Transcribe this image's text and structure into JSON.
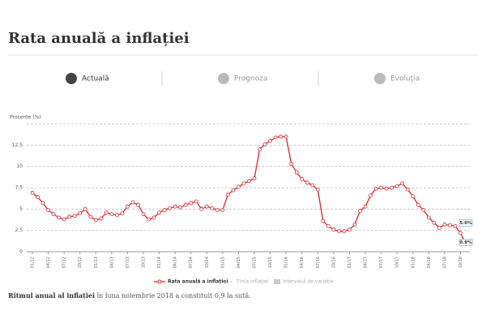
{
  "header": {
    "title": "Rata anuală a inflației"
  },
  "tabs": [
    "Actuală",
    "Prognoza",
    "Evoluția"
  ],
  "footer": {
    "bold": "Ritmul anual al inflației",
    "text": "în luna noiembrie 2018 a constituit 0,9 la sută."
  },
  "chart_data": {
    "type": "line",
    "y_label": "Procente (%)",
    "ylim": [
      0,
      15
    ],
    "yticks": [
      0,
      2.5,
      5,
      7.5,
      10,
      12.5
    ],
    "grid": true,
    "categories": [
      "01/12",
      null,
      null,
      "04/12",
      null,
      null,
      "07/12",
      null,
      null,
      "10/12",
      null,
      null,
      "01/13",
      null,
      null,
      "04/13",
      null,
      null,
      "07/13",
      null,
      null,
      "10/13",
      null,
      null,
      "01/14",
      null,
      null,
      "04/14",
      null,
      null,
      "07/14",
      null,
      null,
      "10/14",
      null,
      null,
      "01/15",
      null,
      null,
      "04/15",
      null,
      null,
      "07/15",
      null,
      null,
      "10/15",
      null,
      null,
      "01/16",
      null,
      null,
      "04/16",
      null,
      null,
      "07/16",
      null,
      null,
      "10/16",
      null,
      null,
      "01/17",
      null,
      null,
      "04/17",
      null,
      null,
      "07/17",
      null,
      null,
      "10/17",
      null,
      null,
      "01/18",
      null,
      null,
      "04/18",
      null,
      null,
      "07/18",
      null,
      null,
      "10/18",
      null
    ],
    "series": [
      {
        "name": "Rata anuală a inflației",
        "color": "#d9262d",
        "values": [
          6.9,
          6.4,
          5.7,
          4.9,
          4.4,
          4.0,
          3.8,
          4.1,
          4.2,
          4.5,
          5.0,
          4.1,
          3.7,
          3.9,
          4.6,
          4.4,
          4.3,
          4.5,
          5.3,
          5.8,
          5.5,
          4.4,
          3.8,
          4.0,
          4.6,
          4.9,
          5.1,
          5.3,
          5.2,
          5.5,
          5.7,
          5.9,
          5.0,
          5.3,
          5.1,
          4.9,
          4.9,
          6.7,
          7.2,
          7.6,
          8.0,
          8.3,
          8.6,
          12.0,
          12.6,
          13.0,
          13.4,
          13.5,
          13.5,
          10.3,
          9.3,
          8.5,
          8.1,
          7.8,
          7.3,
          3.6,
          3.0,
          2.6,
          2.4,
          2.4,
          2.6,
          3.2,
          4.8,
          5.3,
          6.6,
          7.4,
          7.5,
          7.4,
          7.5,
          7.7,
          8.0,
          7.3,
          6.5,
          5.5,
          4.9,
          4.0,
          3.4,
          2.8,
          3.2,
          3.1,
          3.0,
          2.2,
          0.9
        ],
        "value_labels": [
          null,
          null,
          null,
          null,
          null,
          null,
          null,
          null,
          null,
          null,
          null,
          null,
          null,
          null,
          null,
          null,
          null,
          null,
          null,
          null,
          null,
          null,
          null,
          null,
          null,
          null,
          null,
          null,
          null,
          null,
          null,
          null,
          null,
          null,
          null,
          null,
          null,
          null,
          null,
          null,
          null,
          null,
          null,
          null,
          null,
          null,
          null,
          null,
          null,
          null,
          null,
          null,
          null,
          null,
          null,
          null,
          null,
          null,
          null,
          null,
          null,
          null,
          null,
          null,
          null,
          null,
          null,
          null,
          null,
          null,
          null,
          null,
          null,
          null,
          null,
          null,
          null,
          null,
          null,
          null,
          null,
          null,
          "0.9%"
        ]
      }
    ],
    "target": {
      "name": "Ținta inflației",
      "value": 5,
      "label": "5.0%",
      "color": "#bbbbbb"
    },
    "band_legend": {
      "name": "Intervalul de variație",
      "color": "#c8c8c8"
    }
  }
}
